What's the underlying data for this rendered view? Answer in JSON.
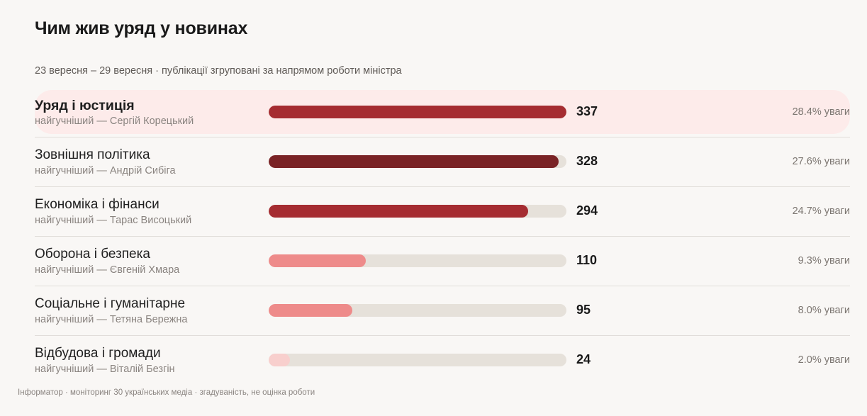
{
  "title": "Чим жив уряд у новинах",
  "subtitle": "23 вересня – 29 вересня · публікації згруповані за напрямом роботи міністра",
  "footer": "Інформатор · моніторинг 30 українських медіа · згадуваність, не оцінка роботи",
  "chart_data": {
    "type": "bar",
    "orientation": "horizontal",
    "xlim": [
      0,
      337
    ],
    "categories": [
      "Уряд і юстиція",
      "Зовнішня політика",
      "Економіка і фінанси",
      "Оборона і безпека",
      "Соціальне і гуманітарне",
      "Відбудова і громади"
    ],
    "values": [
      337,
      328,
      294,
      110,
      95,
      24
    ],
    "value_labels": [
      "337",
      "328",
      "294",
      "110",
      "95",
      "24"
    ],
    "shares": [
      "28.4% уваги",
      "27.6% уваги",
      "24.7% уваги",
      "9.3% уваги",
      "8.0% уваги",
      "2.0% уваги"
    ],
    "leaders": [
      "найгучніший — Сергій Корецький",
      "найгучніший — Андрій Сибіга",
      "найгучніший — Тарас Висоцький",
      "найгучніший — Євгеній Хмара",
      "найгучніший — Тетяна Бережна",
      "найгучніший — Віталій Безгін"
    ],
    "bar_colors": [
      "#a52c31",
      "#7a2326",
      "#a52c31",
      "#ee8b8a",
      "#ee8b8a",
      "#f8cfcd"
    ],
    "highlighted_index": 0
  }
}
